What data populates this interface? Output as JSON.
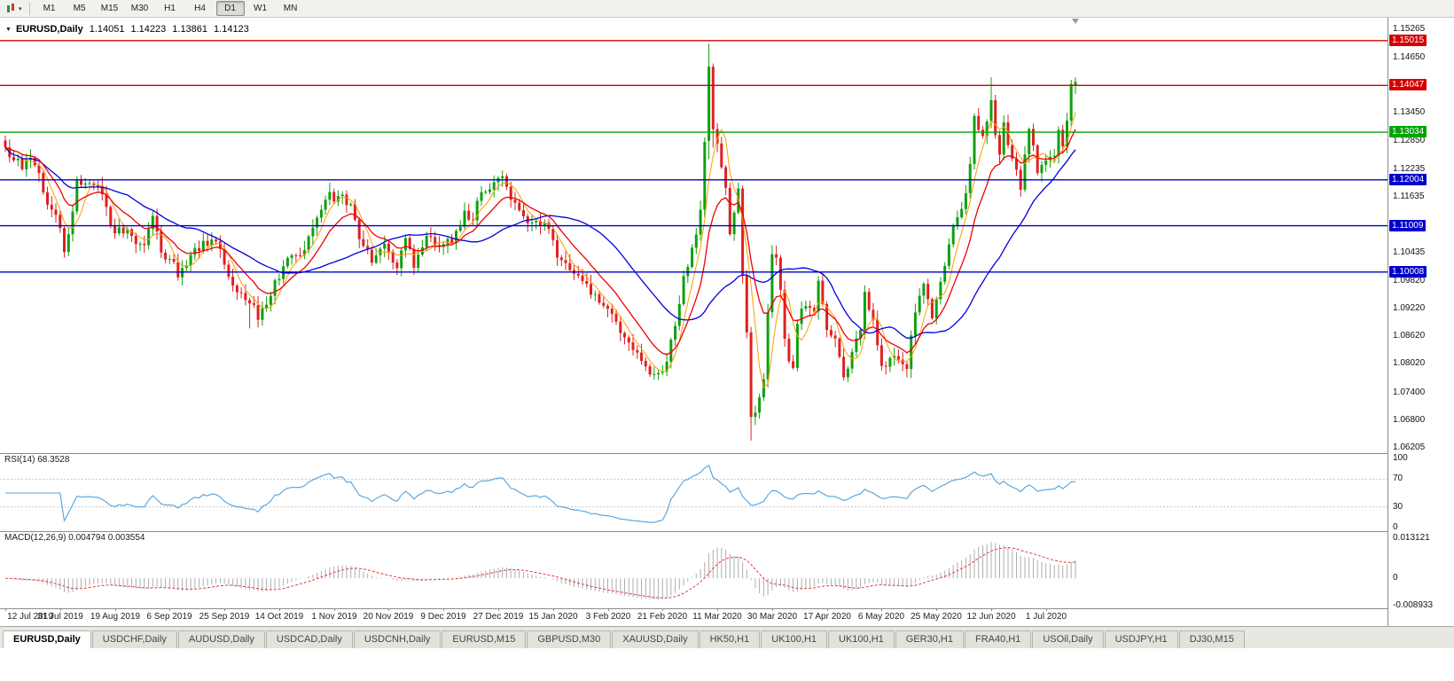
{
  "icons": {
    "dropdown": "▼",
    "toolbar_caret": "▾",
    "shift_marker": "▾"
  },
  "toolbar": {
    "timeframes": [
      "M1",
      "M5",
      "M15",
      "M30",
      "H1",
      "H4",
      "D1",
      "W1",
      "MN"
    ],
    "active_timeframe": "D1"
  },
  "chart_header": {
    "symbol": "EURUSD,Daily",
    "open": "1.14051",
    "high": "1.14223",
    "low": "1.13861",
    "close": "1.14123"
  },
  "price_axis": {
    "ticks": [
      "1.15265",
      "1.14650",
      "1.13450",
      "1.12850",
      "1.12235",
      "1.11635",
      "1.10435",
      "1.09820",
      "1.09220",
      "1.08620",
      "1.08020",
      "1.07400",
      "1.06800",
      "1.06205"
    ],
    "badges": [
      {
        "value": "1.15015",
        "color": "#d40000"
      },
      {
        "value": "1.14047",
        "color": "#d40000"
      },
      {
        "value": "1.13034",
        "color": "#00a400"
      },
      {
        "value": "1.12004",
        "color": "#0000cc"
      },
      {
        "value": "1.11009",
        "color": "#0000cc"
      },
      {
        "value": "1.10008",
        "color": "#0000cc"
      }
    ]
  },
  "rsi": {
    "label": "RSI(14) 68.3528",
    "period": 14,
    "value": 68.3528,
    "axis": [
      "100",
      "70",
      "30",
      "0"
    ],
    "levels": [
      70,
      30
    ],
    "line_color": "#4da2e0"
  },
  "macd": {
    "label": "MACD(12,26,9) 0.004794 0.003554",
    "fast": 12,
    "slow": 26,
    "signal": 9,
    "main_value": 0.004794,
    "signal_value": 0.003554,
    "axis": [
      "0.013121",
      "0",
      "-0.008933"
    ],
    "histogram_color": "#adadad",
    "signal_color": "#e23a3a"
  },
  "dates": [
    "12 Jul 2019",
    "31 Jul 2019",
    "19 Aug 2019",
    "6 Sep 2019",
    "25 Sep 2019",
    "14 Oct 2019",
    "1 Nov 2019",
    "20 Nov 2019",
    "9 Dec 2019",
    "27 Dec 2019",
    "15 Jan 2020",
    "3 Feb 2020",
    "21 Feb 2020",
    "11 Mar 2020",
    "30 Mar 2020",
    "17 Apr 2020",
    "6 May 2020",
    "25 May 2020",
    "12 Jun 2020",
    "1 Jul 2020"
  ],
  "tabs": {
    "active_index": 0,
    "items": [
      "EURUSD,Daily",
      "USDCHF,Daily",
      "AUDUSD,Daily",
      "USDCAD,Daily",
      "USDCNH,Daily",
      "EURUSD,M15",
      "GBPUSD,M30",
      "XAUUSD,Daily",
      "HK50,H1",
      "UK100,H1",
      "UK100,H1",
      "GER30,H1",
      "FRA40,H1",
      "USOil,Daily",
      "USDJPY,H1",
      "DJ30,M15"
    ],
    "note": "chart tabs"
  },
  "chart_data": {
    "type": "candlestick",
    "symbol": "EURUSD",
    "timeframe": "Daily",
    "candle_count": 255,
    "price_range": [
      1.0609,
      1.1553
    ],
    "up_color": "#0fa00f",
    "down_color": "#e02020",
    "last_candle": {
      "open": 1.14051,
      "high": 1.14223,
      "low": 1.13861,
      "close": 1.14123
    },
    "horizontal_levels": [
      {
        "price": 1.15015,
        "color": "#d40000"
      },
      {
        "price": 1.14047,
        "color": "#d40000"
      },
      {
        "price": 1.13034,
        "color": "#00a400"
      },
      {
        "price": 1.12004,
        "color": "#0000cc"
      },
      {
        "price": 1.11009,
        "color": "#0000cc"
      },
      {
        "price": 1.10008,
        "color": "#0000cc"
      }
    ],
    "moving_averages": [
      {
        "type": "sma",
        "period": 5,
        "color": "#ff9c00",
        "width": 1
      },
      {
        "type": "sma",
        "period": 30,
        "color": "#0000dc",
        "width": 1.3
      },
      {
        "type": "ema",
        "period": 12,
        "color": "#ef0000",
        "width": 1.3
      }
    ],
    "rsi_range": [
      0,
      100
    ],
    "macd_axis_range": [
      -0.008933,
      0.013121
    ],
    "anchors": [
      [
        0,
        1.127
      ],
      [
        2,
        1.1245
      ],
      [
        4,
        1.1225
      ],
      [
        6,
        1.125
      ],
      [
        8,
        1.1215
      ],
      [
        10,
        1.1145
      ],
      [
        12,
        1.1125
      ],
      [
        14,
        1.1045
      ],
      [
        15,
        1.1085
      ],
      [
        17,
        1.12
      ],
      [
        20,
        1.1195
      ],
      [
        23,
        1.117
      ],
      [
        25,
        1.11
      ],
      [
        27,
        1.1095
      ],
      [
        30,
        1.108
      ],
      [
        33,
        1.106
      ],
      [
        35,
        1.112
      ],
      [
        37,
        1.104
      ],
      [
        39,
        1.103
      ],
      [
        41,
        1.099
      ],
      [
        44,
        1.1035
      ],
      [
        47,
        1.107
      ],
      [
        50,
        1.1065
      ],
      [
        53,
        1.099
      ],
      [
        56,
        1.0955
      ],
      [
        58,
        1.0935
      ],
      [
        60,
        1.09
      ],
      [
        62,
        1.093
      ],
      [
        64,
        1.098
      ],
      [
        67,
        1.103
      ],
      [
        70,
        1.1035
      ],
      [
        73,
        1.11
      ],
      [
        76,
        1.116
      ],
      [
        79,
        1.1165
      ],
      [
        82,
        1.115
      ],
      [
        84,
        1.1075
      ],
      [
        87,
        1.102
      ],
      [
        90,
        1.106
      ],
      [
        93,
        1.101
      ],
      [
        95,
        1.1075
      ],
      [
        97,
        1.101
      ],
      [
        100,
        1.108
      ],
      [
        103,
        1.1055
      ],
      [
        106,
        1.1065
      ],
      [
        109,
        1.1135
      ],
      [
        111,
        1.111
      ],
      [
        113,
        1.1175
      ],
      [
        116,
        1.1195
      ],
      [
        118,
        1.121
      ],
      [
        120,
        1.116
      ],
      [
        123,
        1.112
      ],
      [
        126,
        1.111
      ],
      [
        129,
        1.1095
      ],
      [
        131,
        1.1035
      ],
      [
        134,
        1.1005
      ],
      [
        137,
        1.098
      ],
      [
        140,
        1.0955
      ],
      [
        143,
        1.092
      ],
      [
        146,
        1.087
      ],
      [
        149,
        1.0835
      ],
      [
        152,
        1.0795
      ],
      [
        155,
        1.0785
      ],
      [
        157,
        1.0805
      ],
      [
        159,
        1.0885
      ],
      [
        161,
        1.099
      ],
      [
        163,
        1.1055
      ],
      [
        164,
        1.1085
      ],
      [
        165,
        1.1135
      ],
      [
        166,
        1.1285
      ],
      [
        167,
        1.1445
      ],
      [
        168,
        1.131
      ],
      [
        169,
        1.128
      ],
      [
        171,
        1.118
      ],
      [
        172,
        1.108
      ],
      [
        174,
        1.118
      ],
      [
        175,
        1.0995
      ],
      [
        176,
        1.087
      ],
      [
        177,
        1.069
      ],
      [
        178,
        1.0695
      ],
      [
        180,
        1.077
      ],
      [
        182,
        1.104
      ],
      [
        183,
        1.103
      ],
      [
        184,
        1.096
      ],
      [
        185,
        1.0855
      ],
      [
        186,
        1.0808
      ],
      [
        187,
        1.0791
      ],
      [
        188,
        1.089
      ],
      [
        190,
        1.093
      ],
      [
        192,
        1.0913
      ],
      [
        193,
        1.098
      ],
      [
        195,
        1.0875
      ],
      [
        197,
        1.0858
      ],
      [
        199,
        1.0775
      ],
      [
        201,
        1.0829
      ],
      [
        203,
        1.0875
      ],
      [
        204,
        1.0955
      ],
      [
        206,
        1.09
      ],
      [
        208,
        1.0795
      ],
      [
        210,
        1.0815
      ],
      [
        212,
        1.081
      ],
      [
        214,
        1.079
      ],
      [
        216,
        1.0915
      ],
      [
        218,
        1.0975
      ],
      [
        220,
        1.09
      ],
      [
        222,
        1.098
      ],
      [
        223,
        1.1015
      ],
      [
        225,
        1.11
      ],
      [
        227,
        1.1135
      ],
      [
        229,
        1.1233
      ],
      [
        230,
        1.1337
      ],
      [
        232,
        1.1295
      ],
      [
        234,
        1.1373
      ],
      [
        235,
        1.13
      ],
      [
        236,
        1.1255
      ],
      [
        237,
        1.1323
      ],
      [
        239,
        1.1244
      ],
      [
        241,
        1.1177
      ],
      [
        243,
        1.1308
      ],
      [
        245,
        1.1218
      ],
      [
        247,
        1.1242
      ],
      [
        249,
        1.125
      ],
      [
        250,
        1.1308
      ],
      [
        251,
        1.1274
      ],
      [
        252,
        1.133
      ],
      [
        253,
        1.1405
      ],
      [
        254,
        1.14123
      ]
    ],
    "overrides": {
      "58": {
        "l": 1.0879
      },
      "167": {
        "o": 1.1285,
        "h": 1.1495,
        "l": 1.1245,
        "c": 1.1445
      },
      "168": {
        "o": 1.1445,
        "h": 1.1452,
        "l": 1.127,
        "c": 1.131
      },
      "177": {
        "l": 1.0636
      },
      "234": {
        "h": 1.1422
      },
      "254": {
        "o": 1.14051,
        "h": 1.14223,
        "l": 1.13861,
        "c": 1.14123
      }
    }
  }
}
